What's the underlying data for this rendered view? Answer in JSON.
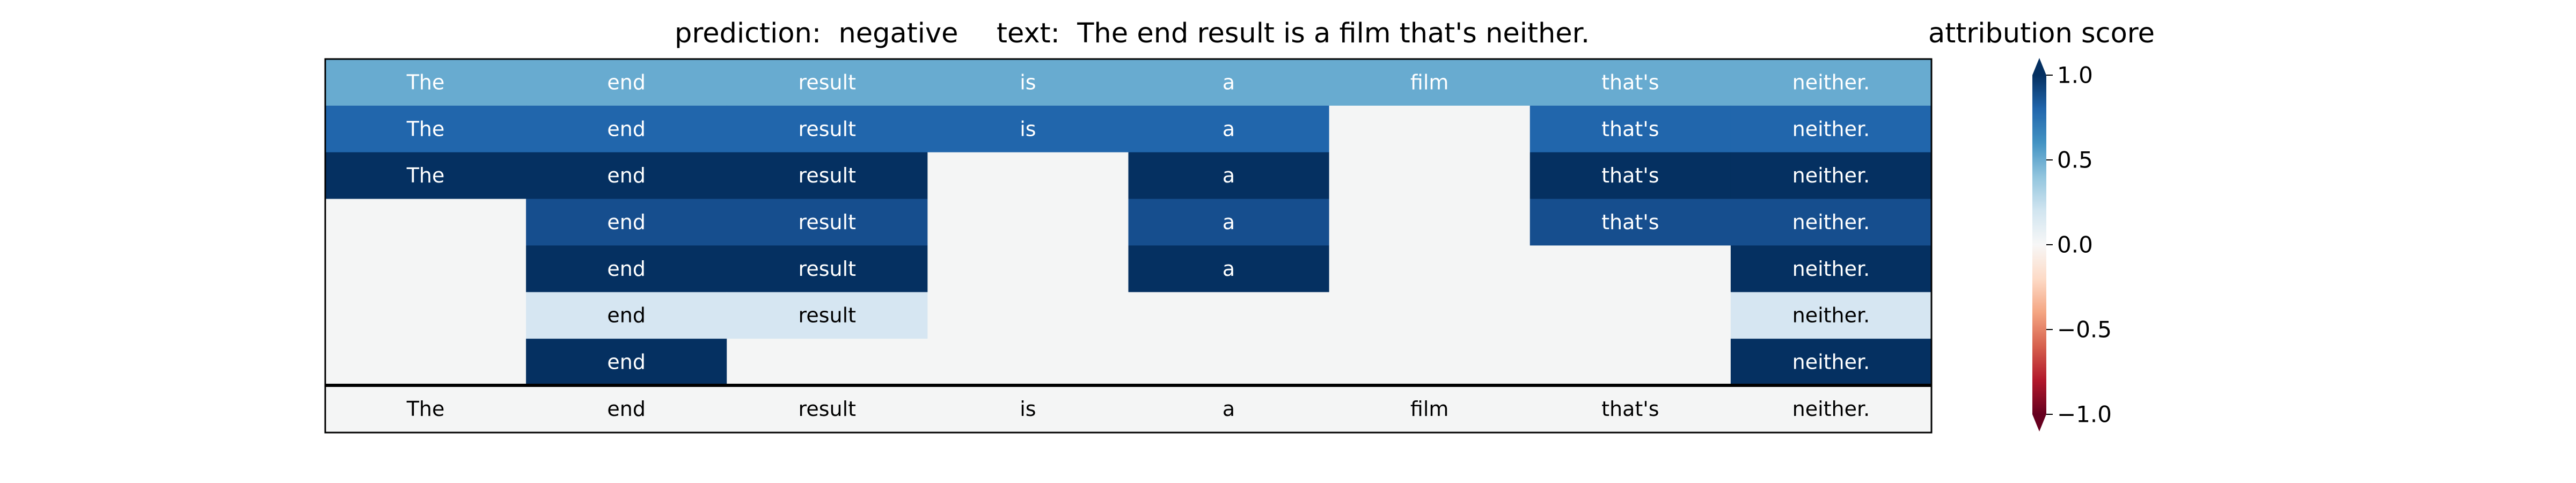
{
  "chart_data": {
    "type": "heatmap",
    "title_prediction": "prediction:  negative",
    "title_text": "text:  The end result is a film that's neither.",
    "colorbar_title": "attribution score",
    "tokens": [
      "The",
      "end",
      "result",
      "is",
      "a",
      "film",
      "that's",
      "neither."
    ],
    "rows": [
      [
        0.55,
        0.55,
        0.55,
        0.55,
        0.55,
        0.55,
        0.55,
        0.55
      ],
      [
        0.8,
        0.8,
        0.8,
        0.8,
        0.8,
        0.0,
        0.8,
        0.8
      ],
      [
        1.0,
        1.0,
        1.0,
        0.0,
        1.0,
        0.0,
        1.0,
        1.0
      ],
      [
        0.0,
        0.9,
        0.9,
        0.0,
        0.9,
        0.0,
        0.9,
        0.9
      ],
      [
        0.0,
        1.0,
        1.0,
        0.0,
        1.0,
        0.0,
        0.0,
        1.0
      ],
      [
        0.0,
        0.2,
        0.2,
        0.0,
        0.0,
        0.0,
        0.0,
        0.2
      ],
      [
        0.0,
        1.0,
        0.0,
        0.0,
        0.0,
        0.0,
        0.0,
        1.0
      ]
    ],
    "colormap": "RdBu",
    "vmin": -1.0,
    "vmax": 1.0,
    "colorbar_ticks": [
      "1.0",
      "0.5",
      "0.0",
      "−0.5",
      "−1.0"
    ],
    "colorbar_tick_values": [
      1.0,
      0.5,
      0.0,
      -0.5,
      -1.0
    ]
  }
}
